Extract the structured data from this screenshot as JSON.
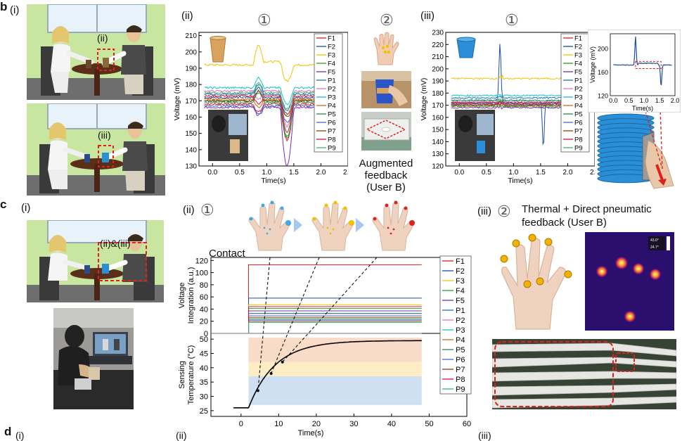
{
  "panel_b": {
    "letter": "b",
    "sub_i": "(i)",
    "sub_ii": "(ii)",
    "sub_iii": "(iii)",
    "scene_tag_ii": "(ii)",
    "scene_tag_iii": "(iii)",
    "circle_1a": "①",
    "circle_2": "②",
    "circle_1b": "①",
    "augmented_caption": [
      "Augmented",
      "feedback",
      "(User B)"
    ]
  },
  "panel_c": {
    "letter": "c",
    "sub_i": "(i)",
    "sub_ii": "(ii)",
    "sub_iii": "(iii)",
    "scene_tag": "(ii)&(iii)",
    "circle_1": "①",
    "circle_2": "②",
    "thermal_title": [
      "Thermal + Direct pneumatic",
      "feedback (User B)"
    ],
    "contact_label": "Contact",
    "thermal_scale": [
      "43.0°",
      "24.7°"
    ]
  },
  "panel_d": {
    "letter": "d",
    "sub_i": "(i)",
    "sub_ii": "(ii)",
    "sub_iii": "(iii)"
  },
  "legend_entries": [
    "F1",
    "F2",
    "F3",
    "F4",
    "F5",
    "P1",
    "P2",
    "P3",
    "P4",
    "P5",
    "P6",
    "P7",
    "P8",
    "P9"
  ],
  "colors": {
    "series": [
      "#e41a1c",
      "#1f4e9c",
      "#f2c200",
      "#2ca02c",
      "#7b2fa5",
      "#1f77b4",
      "#e377c2",
      "#17becf",
      "#d2691e",
      "#2e8b57",
      "#4169e1",
      "#8b4513",
      "#dc143c",
      "#3cb371"
    ],
    "wall": "#c8e6a0",
    "thermal_bg": "#2a0f6e",
    "dashed_box": "#e0201a",
    "cup_blue": "#2a8fd6",
    "cup_paper": "#d9a35d"
  },
  "chart_data": [
    {
      "id": "b-ii",
      "type": "line",
      "xlabel": "Time(s)",
      "ylabel": "Voltage (mV)",
      "xlim": [
        -0.25,
        2.5
      ],
      "ylim": [
        130,
        212
      ],
      "xticks": [
        0.0,
        0.5,
        1.0,
        1.5,
        2.0,
        2.5
      ],
      "yticks": [
        130,
        140,
        150,
        160,
        170,
        180,
        190,
        200,
        210
      ],
      "baselines": [
        168,
        172,
        192,
        170,
        166,
        174,
        176,
        178,
        171,
        169,
        167,
        170,
        173,
        175
      ],
      "legend": "right",
      "grid": false
    },
    {
      "id": "b-iii",
      "type": "line",
      "xlabel": "Time(s)",
      "ylabel": "Voltage (mV)",
      "xlim": [
        -0.25,
        2.5
      ],
      "ylim": [
        120,
        230
      ],
      "xticks": [
        0.0,
        0.5,
        1.0,
        1.5,
        2.0,
        2.5
      ],
      "yticks": [
        120,
        130,
        140,
        150,
        160,
        170,
        180,
        190,
        200,
        210,
        220,
        230
      ],
      "baselines": [
        171,
        174,
        192,
        169,
        168,
        176,
        173,
        178,
        170,
        172,
        171,
        170,
        172,
        174
      ],
      "peak_series": "F2",
      "peak": {
        "x": 0.75,
        "y": 221
      },
      "dip": {
        "x": 1.55,
        "y": 134
      },
      "legend": "right",
      "grid": false
    },
    {
      "id": "b-iii-inset",
      "type": "line",
      "xlabel": "Time(s)",
      "ylabel": "Voltage (mV)",
      "xlim": [
        -0.1,
        2.0
      ],
      "ylim": [
        120,
        225
      ],
      "xticks": [
        0.0,
        0.5,
        1.0,
        1.5,
        2.0
      ],
      "yticks": [
        120,
        160,
        200
      ],
      "baseline": 172,
      "peak": {
        "x": 0.72,
        "y": 220
      },
      "dip": {
        "x": 1.55,
        "y": 135
      }
    },
    {
      "id": "c-ii-voltage",
      "type": "step",
      "ylabel": [
        "Voltage",
        "Integration (a.u.)"
      ],
      "xlim": [
        -8,
        60
      ],
      "ylim": [
        0,
        125
      ],
      "yticks": [
        0,
        20,
        40,
        60,
        80,
        100,
        120
      ],
      "contact_x": 2,
      "end_x": 48,
      "levels": [
        113,
        58,
        47,
        41,
        37,
        33,
        30,
        28,
        26,
        24,
        22,
        20,
        44,
        18
      ],
      "legend": "right"
    },
    {
      "id": "c-ii-temperature",
      "type": "line",
      "xlabel": "Time(s)",
      "ylabel": [
        "Sensing",
        "Temperature (°C)"
      ],
      "xlim": [
        -8,
        60
      ],
      "ylim": [
        23,
        52
      ],
      "xticks": [
        0,
        10,
        20,
        30,
        40,
        50,
        60
      ],
      "yticks": [
        25,
        30,
        35,
        40,
        45,
        50
      ],
      "start_x": 2,
      "start_y": 26,
      "end_x": 48,
      "plateau_y": 49.5,
      "bands": [
        {
          "from": 27,
          "to": 37,
          "color": "#cfe0f3"
        },
        {
          "from": 37,
          "to": 42,
          "color": "#fdedc4"
        },
        {
          "from": 42,
          "to": 50.5,
          "color": "#f8dcc8"
        }
      ]
    }
  ]
}
